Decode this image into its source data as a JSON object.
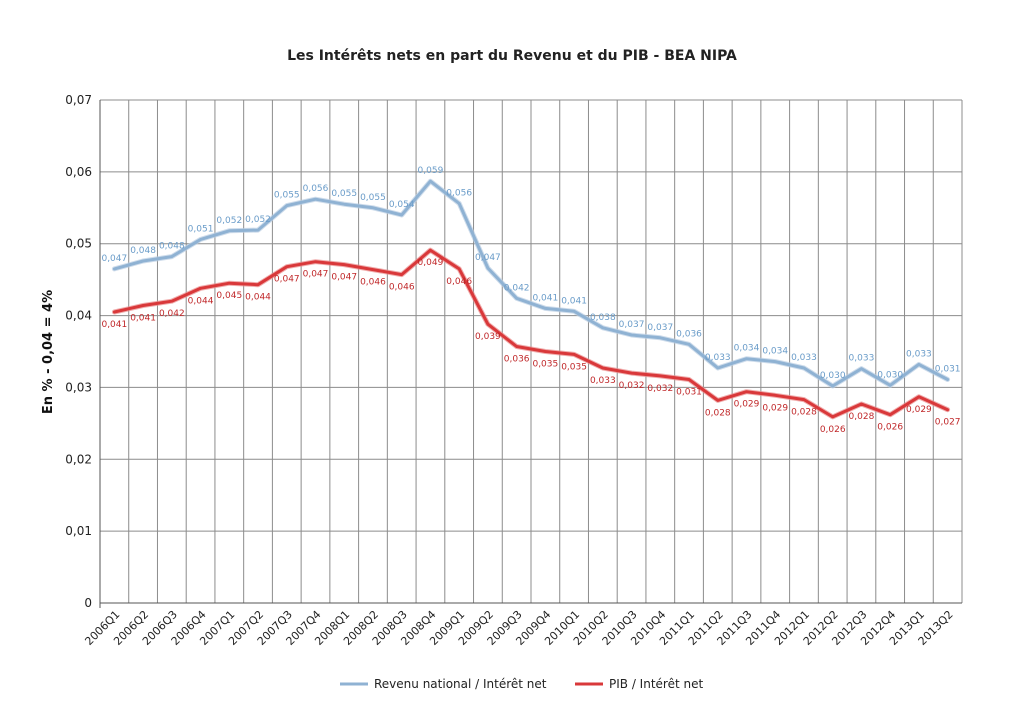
{
  "chart_data": {
    "type": "line",
    "title": "Les Intérêts nets en part du Revenu et du PIB - BEA NIPA",
    "xlabel": "",
    "ylabel": "En % - 0,04 = 4%",
    "ylim": [
      0,
      0.07
    ],
    "yticks": [
      "0",
      "0,01",
      "0,02",
      "0,03",
      "0,04",
      "0,05",
      "0,06",
      "0,07"
    ],
    "grid": true,
    "legend_position": "bottom",
    "categories": [
      "2006Q1",
      "2006Q2",
      "2006Q3",
      "2006Q4",
      "2007Q1",
      "2007Q2",
      "2007Q3",
      "2007Q4",
      "2008Q1",
      "2008Q2",
      "2008Q3",
      "2008Q4",
      "2009Q1",
      "2009Q2",
      "2009Q3",
      "2009Q4",
      "2010Q1",
      "2010Q2",
      "2010Q3",
      "2010Q4",
      "2011Q1",
      "2011Q2",
      "2011Q3",
      "2011Q4",
      "2012Q1",
      "2012Q2",
      "2012Q3",
      "2012Q4",
      "2013Q1",
      "2013Q2"
    ],
    "series": [
      {
        "name": "Revenu national / Intérêt net",
        "color": "#8fb2d3",
        "values": [
          0.0465,
          0.0476,
          0.0482,
          0.0506,
          0.0518,
          0.0519,
          0.0553,
          0.0562,
          0.0555,
          0.055,
          0.054,
          0.0587,
          0.0556,
          0.0466,
          0.0424,
          0.041,
          0.0406,
          0.0383,
          0.0373,
          0.0369,
          0.036,
          0.0327,
          0.034,
          0.0336,
          0.0327,
          0.0302,
          0.0326,
          0.0303,
          0.0332,
          0.0311
        ],
        "labels": [
          "0,047",
          "0,048",
          "0,048",
          "0,051",
          "0,052",
          "0,052",
          "0,055",
          "0,056",
          "0,055",
          "0,055",
          "0,054",
          "0,059",
          "0,056",
          "0,047",
          "0,042",
          "0,041",
          "0,041",
          "0,038",
          "0,037",
          "0,037",
          "0,036",
          "0,033",
          "0,034",
          "0,034",
          "0,033",
          "0,030",
          "0,033",
          "0,030",
          "0,033",
          "0,031"
        ]
      },
      {
        "name": "PIB / Intérêt net",
        "color": "#d9383a",
        "values": [
          0.0405,
          0.0414,
          0.042,
          0.0438,
          0.0445,
          0.0443,
          0.0468,
          0.0475,
          0.0471,
          0.0464,
          0.0457,
          0.0491,
          0.0465,
          0.0388,
          0.0357,
          0.035,
          0.0346,
          0.0327,
          0.032,
          0.0316,
          0.0311,
          0.0282,
          0.0294,
          0.0289,
          0.0283,
          0.0259,
          0.0277,
          0.0262,
          0.0287,
          0.0269
        ],
        "labels": [
          "0,041",
          "0,041",
          "0,042",
          "0,044",
          "0,045",
          "0,044",
          "0,047",
          "0,047",
          "0,047",
          "0,046",
          "0,046",
          "0,049",
          "0,046",
          "0,039",
          "0,036",
          "0,035",
          "0,035",
          "0,033",
          "0,032",
          "0,032",
          "0,031",
          "0,028",
          "0,029",
          "0,029",
          "0,028",
          "0,026",
          "0,028",
          "0,026",
          "0,029",
          "0,027"
        ]
      }
    ]
  }
}
